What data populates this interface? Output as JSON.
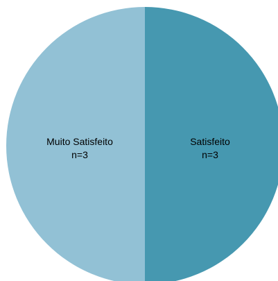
{
  "chart_data": {
    "type": "pie",
    "title": "",
    "slices": [
      {
        "label": "Muito Satisfeito",
        "count_label": "n=3",
        "value": 3,
        "color": "#92c1d5"
      },
      {
        "label": "Satisfeito",
        "count_label": "n=3",
        "value": 3,
        "color": "#4698b0"
      }
    ],
    "start_angle_deg": 0,
    "direction": "clockwise",
    "order": [
      1,
      0
    ],
    "legend": "none",
    "labels_position": "inside"
  }
}
